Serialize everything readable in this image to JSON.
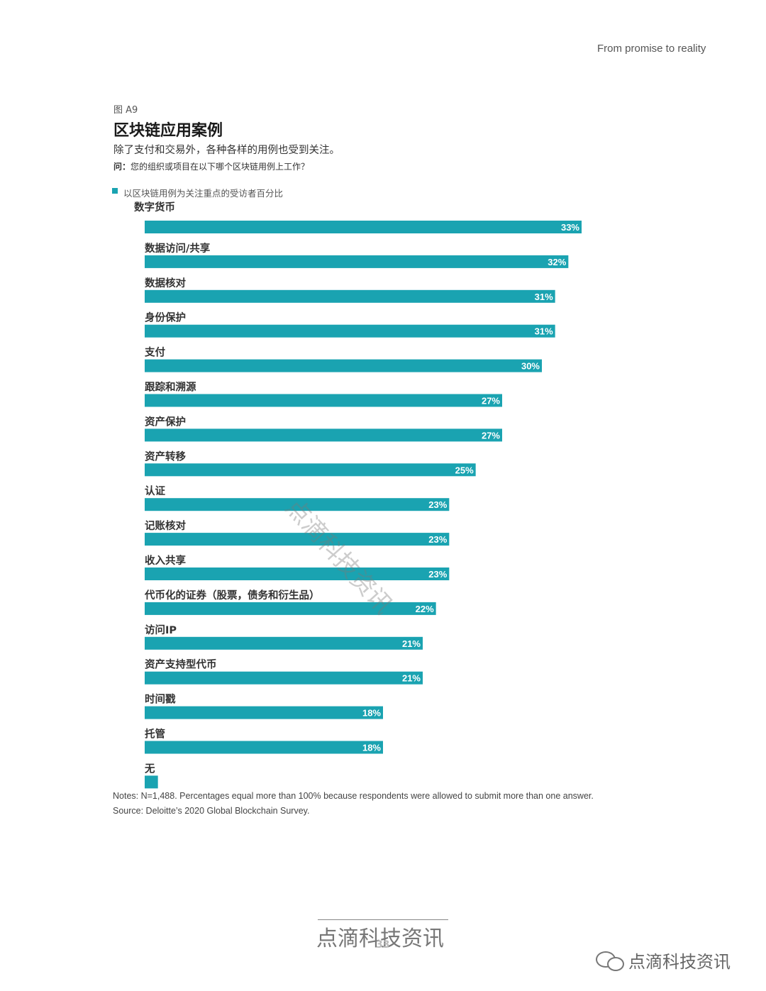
{
  "header": {
    "running_title": "From promise to reality"
  },
  "figure": {
    "label": "图 A9",
    "title": "区块链应用案例",
    "subtitle": "除了支付和交易外，各种各样的用例也受到关注。",
    "question_prefix": "问：",
    "question": "您的组织或项目在以下哪个区块链用例上工作？"
  },
  "colors": {
    "bar": "#1aa3b1",
    "text": "#333333"
  },
  "chart_data": {
    "type": "bar",
    "orientation": "horizontal",
    "series": [
      {
        "name": "以区块链用例为关注重点的受访者百分比"
      }
    ],
    "categories": [
      "数字货币",
      "数据访问/共享",
      "数据核对",
      "身份保护",
      "支付",
      "跟踪和溯源",
      "资产保护",
      "资产转移",
      "认证",
      "记账核对",
      "收入共享",
      "代币化的证券（股票，债务和衍生品）",
      "访问IP",
      "资产支持型代币",
      "时间戳",
      "托管",
      "无"
    ],
    "values": [
      33,
      32,
      31,
      31,
      30,
      27,
      27,
      25,
      23,
      23,
      23,
      22,
      21,
      21,
      18,
      18,
      1
    ],
    "data_labels": [
      "33%",
      "32%",
      "31%",
      "31%",
      "30%",
      "27%",
      "27%",
      "25%",
      "23%",
      "23%",
      "23%",
      "22%",
      "21%",
      "21%",
      "18%",
      "18%",
      ""
    ],
    "xlim": [
      0,
      33
    ],
    "grid": false,
    "legend": "top-left"
  },
  "notes": {
    "notes": "Notes: N=1,488. Percentages equal more than 100% because respondents were allowed to submit more than one answer.",
    "source": "Source: Deloitte’s 2020 Global Blockchain Survey."
  },
  "watermarks": {
    "diagonal": "点滴科技资讯",
    "footer": "点滴科技资讯",
    "corner": "点滴科技资讯",
    "corner_icon": "wechat-icon"
  },
  "page": {
    "number": "33"
  }
}
